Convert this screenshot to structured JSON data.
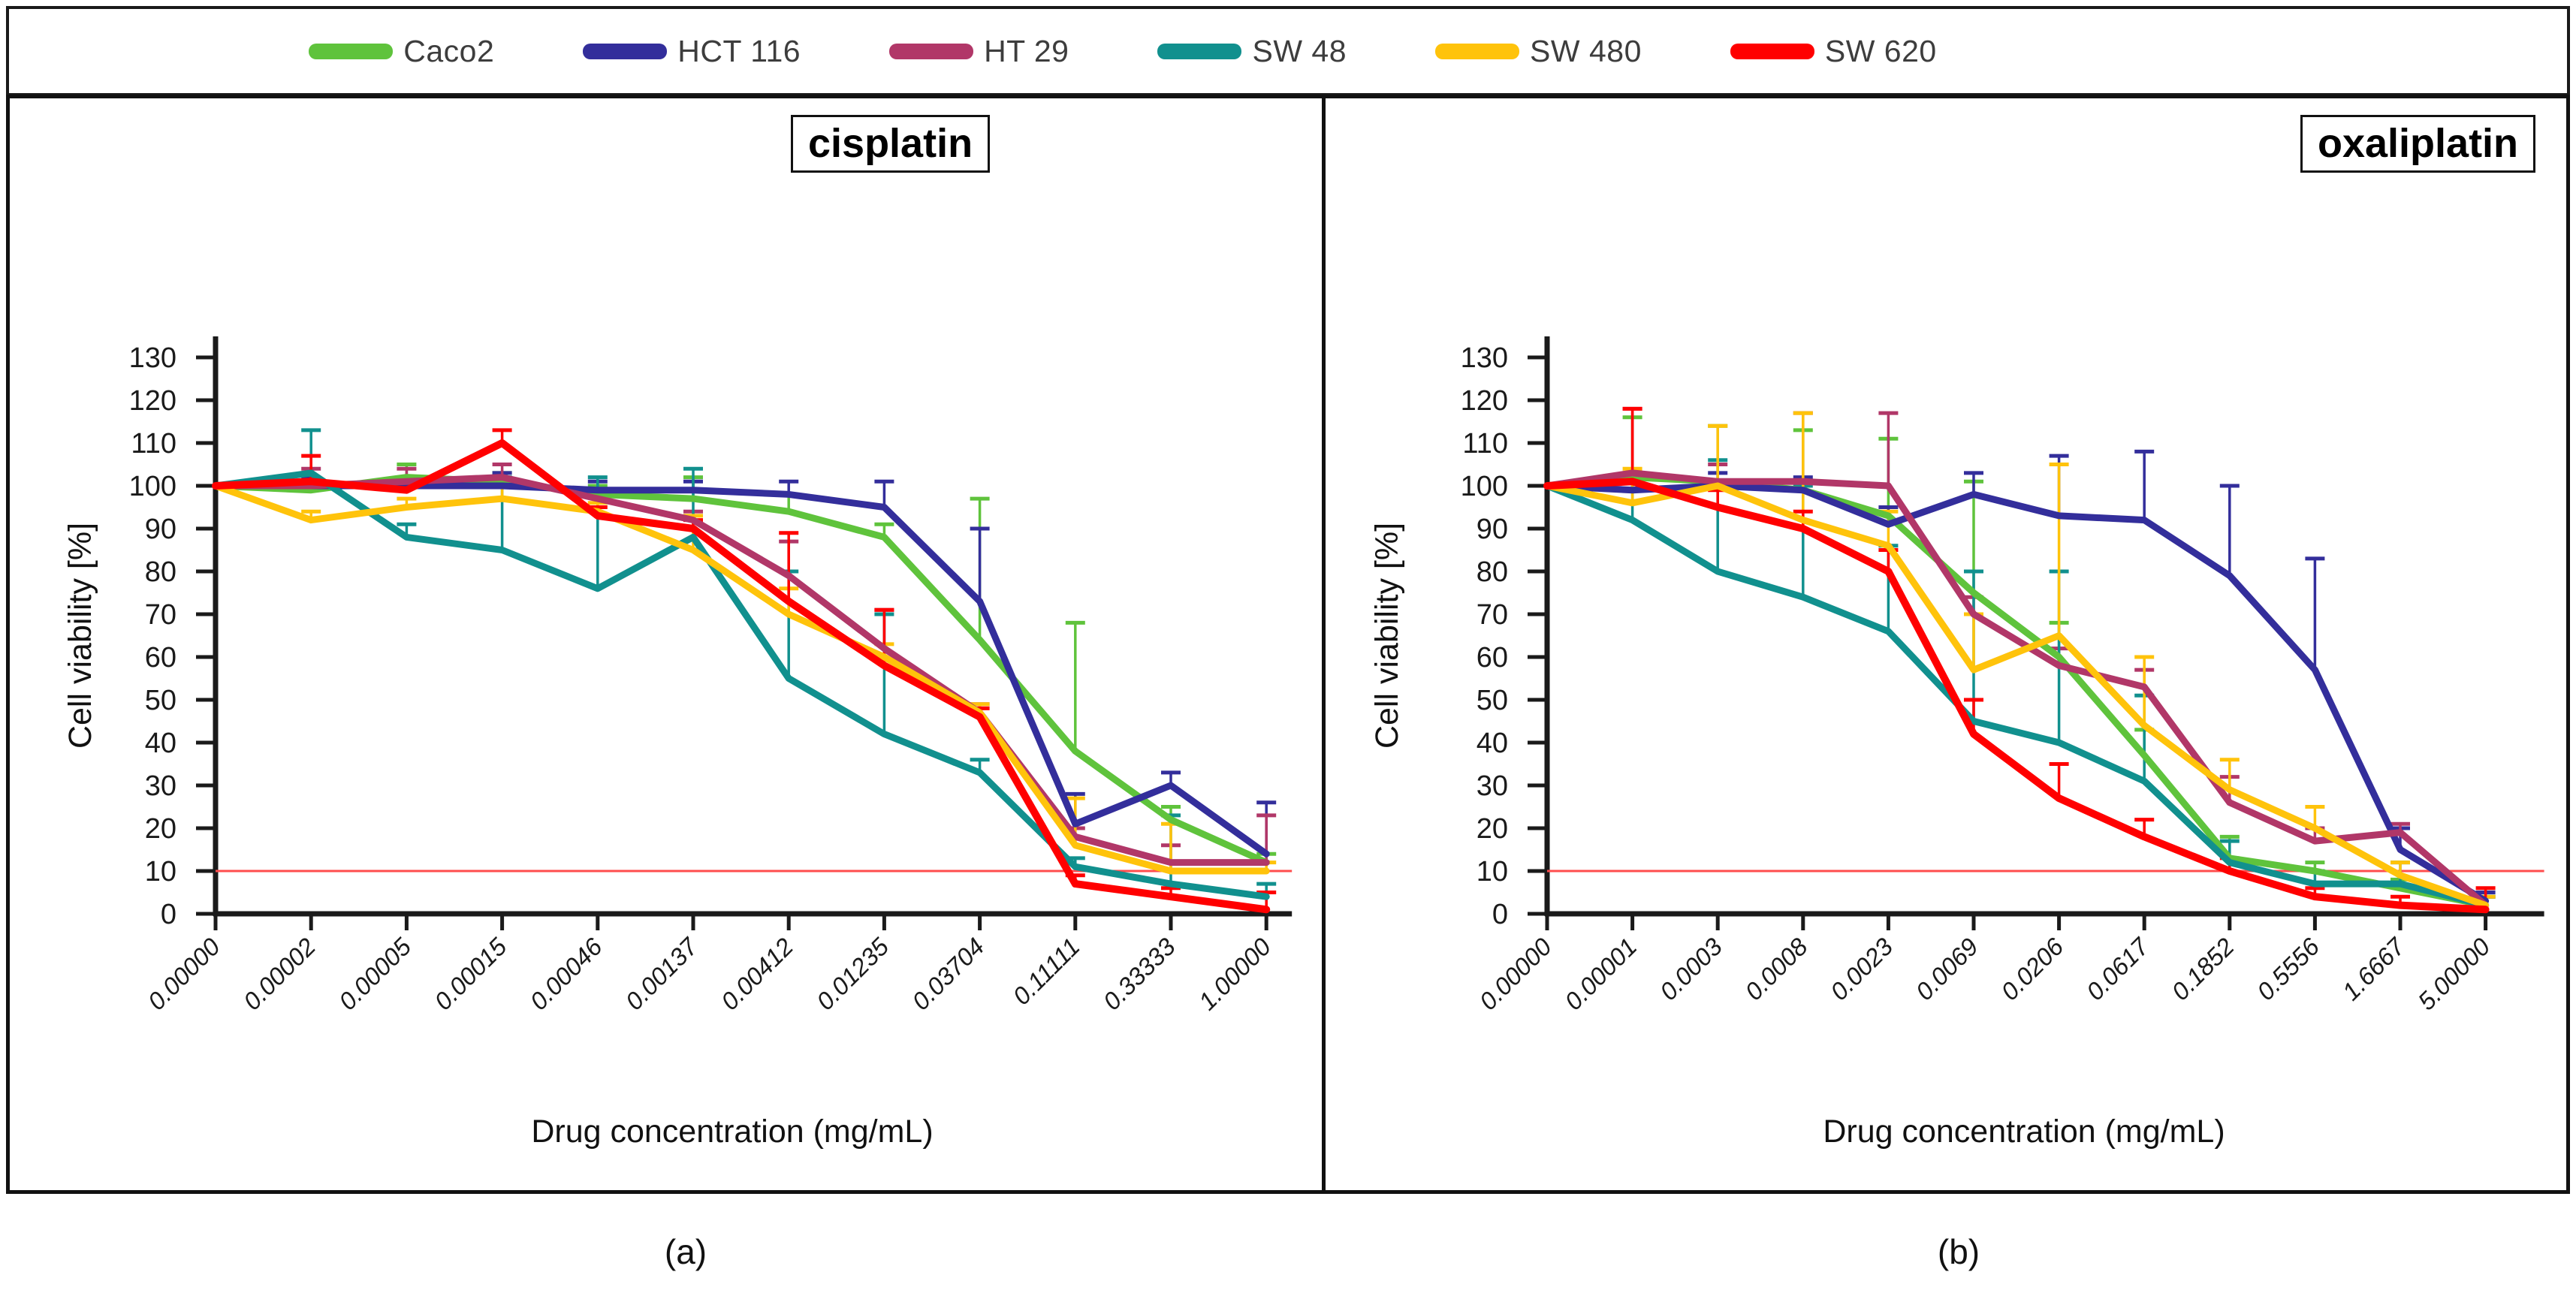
{
  "legend": {
    "items": [
      {
        "label": "Caco2",
        "color": "#5FC33C"
      },
      {
        "label": "HCT 116",
        "color": "#332E9B"
      },
      {
        "label": "HT 29",
        "color": "#B13768"
      },
      {
        "label": "SW 48",
        "color": "#11908E"
      },
      {
        "label": "SW 480",
        "color": "#FFC30B"
      },
      {
        "label": "SW 620",
        "color": "#FF0000"
      }
    ]
  },
  "panel_letters": [
    "(a)",
    "(b)"
  ],
  "colors": {
    "axis": "#1a1a1a",
    "threshold_line": "#FF4D4D",
    "tick_label": "#1a1a1a"
  },
  "chart_data": [
    {
      "type": "line",
      "title": "cisplatin",
      "xlabel": "Drug concentration  (mg/mL)",
      "ylabel": "Cell viability [%]",
      "ylim": [
        0,
        130
      ],
      "ytick_step": 10,
      "grid": false,
      "legend_position": "top",
      "threshold_line_y": 10,
      "categories": [
        "0.00000",
        "0.00002",
        "0.00005",
        "0.00015",
        "0.00046",
        "0.00137",
        "0.00412",
        "0.01235",
        "0.03704",
        "0.11111",
        "0.33333",
        "1.00000"
      ],
      "series": [
        {
          "name": "Caco2",
          "color": "#5FC33C",
          "values": [
            100,
            99,
            102,
            101,
            98,
            97,
            94,
            88,
            64,
            38,
            22,
            12
          ],
          "err_up": [
            0,
            2,
            3,
            2,
            2,
            5,
            4,
            3,
            33,
            30,
            3,
            2
          ]
        },
        {
          "name": "HCT 116",
          "color": "#332E9B",
          "values": [
            100,
            100,
            100,
            100,
            99,
            99,
            98,
            95,
            73,
            21,
            30,
            14
          ],
          "err_up": [
            0,
            2,
            2,
            3,
            2,
            2,
            3,
            6,
            17,
            7,
            3,
            12
          ]
        },
        {
          "name": "HT 29",
          "color": "#B13768",
          "values": [
            100,
            100,
            101,
            102,
            97,
            92,
            79,
            62,
            47,
            18,
            12,
            12
          ],
          "err_up": [
            0,
            4,
            3,
            3,
            2,
            2,
            8,
            9,
            2,
            2,
            4,
            11
          ]
        },
        {
          "name": "SW 48",
          "color": "#11908E",
          "values": [
            100,
            103,
            88,
            85,
            76,
            88,
            55,
            42,
            33,
            11,
            7,
            4
          ],
          "err_up": [
            0,
            10,
            3,
            17,
            26,
            16,
            25,
            28,
            3,
            2,
            16,
            3
          ]
        },
        {
          "name": "SW 480",
          "color": "#FFC30B",
          "values": [
            100,
            92,
            95,
            97,
            94,
            85,
            70,
            60,
            47,
            16,
            10,
            10
          ],
          "err_up": [
            0,
            2,
            2,
            3,
            2,
            8,
            6,
            3,
            2,
            11,
            11,
            2
          ]
        },
        {
          "name": "SW 620",
          "color": "#FF0000",
          "values": [
            100,
            101,
            99,
            110,
            93,
            90,
            73,
            58,
            46,
            7,
            4,
            1
          ],
          "err_up": [
            0,
            6,
            2,
            3,
            2,
            2,
            16,
            13,
            2,
            2,
            2,
            4
          ]
        }
      ]
    },
    {
      "type": "line",
      "title": "oxaliplatin",
      "xlabel": "Drug concentration (mg/mL)",
      "ylabel": "Cell viability [%]",
      "ylim": [
        0,
        130
      ],
      "ytick_step": 10,
      "grid": false,
      "legend_position": "top",
      "threshold_line_y": 10,
      "categories": [
        "0.00000",
        "0.00001",
        "0.0003",
        "0.0008",
        "0.0023",
        "0.0069",
        "0.0206",
        "0.0617",
        "0.1852",
        "0.5556",
        "1.6667",
        "5.00000"
      ],
      "series": [
        {
          "name": "Caco2",
          "color": "#5FC33C",
          "values": [
            100,
            102,
            101,
            99,
            93,
            75,
            60,
            37,
            13,
            10,
            6,
            2
          ],
          "err_up": [
            0,
            14,
            13,
            14,
            18,
            26,
            8,
            6,
            5,
            2,
            2,
            2
          ]
        },
        {
          "name": "HCT 116",
          "color": "#332E9B",
          "values": [
            100,
            99,
            100,
            99,
            91,
            98,
            93,
            92,
            79,
            57,
            15,
            3
          ],
          "err_up": [
            0,
            3,
            3,
            3,
            4,
            5,
            14,
            16,
            21,
            26,
            5,
            2
          ]
        },
        {
          "name": "HT 29",
          "color": "#B13768",
          "values": [
            100,
            103,
            101,
            101,
            100,
            70,
            58,
            53,
            26,
            17,
            19,
            2
          ],
          "err_up": [
            0,
            15,
            4,
            16,
            17,
            4,
            4,
            4,
            6,
            3,
            2,
            2
          ]
        },
        {
          "name": "SW 48",
          "color": "#11908E",
          "values": [
            100,
            92,
            80,
            74,
            66,
            45,
            40,
            31,
            12,
            7,
            7,
            2
          ],
          "err_up": [
            0,
            11,
            26,
            26,
            20,
            35,
            40,
            20,
            5,
            3,
            5,
            2
          ]
        },
        {
          "name": "SW 480",
          "color": "#FFC30B",
          "values": [
            100,
            96,
            100,
            92,
            86,
            57,
            65,
            44,
            29,
            20,
            9,
            2
          ],
          "err_up": [
            0,
            8,
            14,
            25,
            8,
            13,
            40,
            16,
            7,
            5,
            3,
            2
          ]
        },
        {
          "name": "SW 620",
          "color": "#FF0000",
          "values": [
            100,
            101,
            95,
            90,
            80,
            42,
            27,
            18,
            10,
            4,
            2,
            1
          ],
          "err_up": [
            0,
            17,
            4,
            4,
            5,
            8,
            8,
            4,
            3,
            2,
            2,
            5
          ]
        }
      ]
    }
  ]
}
